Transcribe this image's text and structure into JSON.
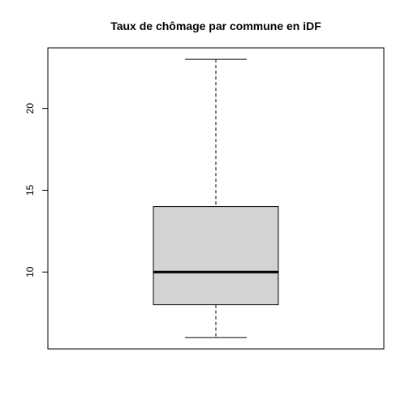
{
  "chart_data": {
    "type": "boxplot",
    "title": "Taux de chômage par commune en iDF",
    "xlabel": "",
    "ylabel": "",
    "ylim": [
      5.3,
      23.7
    ],
    "y_ticks": [
      10,
      15,
      20
    ],
    "y_tick_labels": [
      "10",
      "15",
      "20"
    ],
    "box": {
      "min": 6,
      "q1": 8,
      "median": 10,
      "q3": 14,
      "max": 23
    },
    "box_fill": "#d3d3d3",
    "line_color": "#000000",
    "grid": false
  }
}
